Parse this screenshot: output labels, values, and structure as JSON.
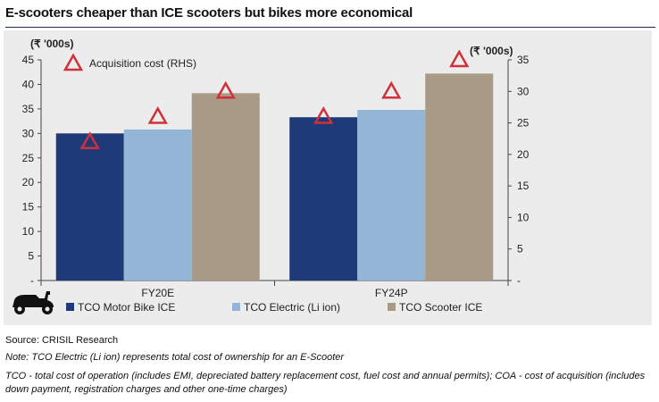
{
  "title": "E-scooters cheaper than ICE scooters but bikes more economical",
  "source": "Source: CRISIL  Research",
  "note1": "Note: TCO Electric (Li ion) represents total cost of ownership for an E-Scooter",
  "note2": "TCO - total cost of operation (includes EMI, depreciated battery replacement cost, fuel cost and annual permits); COA  - cost of acquisition (includes down payment,  registration charges and other one-time charges)",
  "colors": {
    "motor_bike": "#1f3a78",
    "electric": "#94b6d6",
    "scooter_ice": "#a89a86",
    "triangle": "#d0303a",
    "panel": "#ececec"
  },
  "chart_data": {
    "type": "bar",
    "categories": [
      "FY20E",
      "FY24P"
    ],
    "series": [
      {
        "name": "TCO Motor Bike ICE",
        "values": [
          30,
          33.3
        ]
      },
      {
        "name": "TCO Electric (Li ion)",
        "values": [
          30.8,
          34.8
        ]
      },
      {
        "name": "TCO Scooter ICE",
        "values": [
          38.2,
          42.2
        ]
      }
    ],
    "secondary_series": {
      "name": "Acquisition cost (RHS)",
      "axis": "right",
      "marker": "triangle",
      "values": [
        {
          "category": "FY20E",
          "series": "TCO Motor Bike ICE",
          "value": 22
        },
        {
          "category": "FY20E",
          "series": "TCO Electric (Li ion)",
          "value": 26
        },
        {
          "category": "FY20E",
          "series": "TCO Scooter ICE",
          "value": 30
        },
        {
          "category": "FY24P",
          "series": "TCO Motor Bike ICE",
          "value": 26
        },
        {
          "category": "FY24P",
          "series": "TCO Electric (Li ion)",
          "value": 30
        },
        {
          "category": "FY24P",
          "series": "TCO Scooter ICE",
          "value": 35
        }
      ]
    },
    "left_axis": {
      "label": "(₹ '000s)",
      "ylim": [
        0,
        45
      ],
      "ticks": [
        "-",
        "5",
        "10",
        "15",
        "20",
        "25",
        "30",
        "35",
        "40",
        "45"
      ]
    },
    "right_axis": {
      "label": "(₹ '000s)",
      "ylim": [
        0,
        35
      ],
      "ticks": [
        "-",
        "5",
        "10",
        "15",
        "20",
        "25",
        "30",
        "35"
      ]
    },
    "legend_placement": "bottom",
    "grid": false
  }
}
